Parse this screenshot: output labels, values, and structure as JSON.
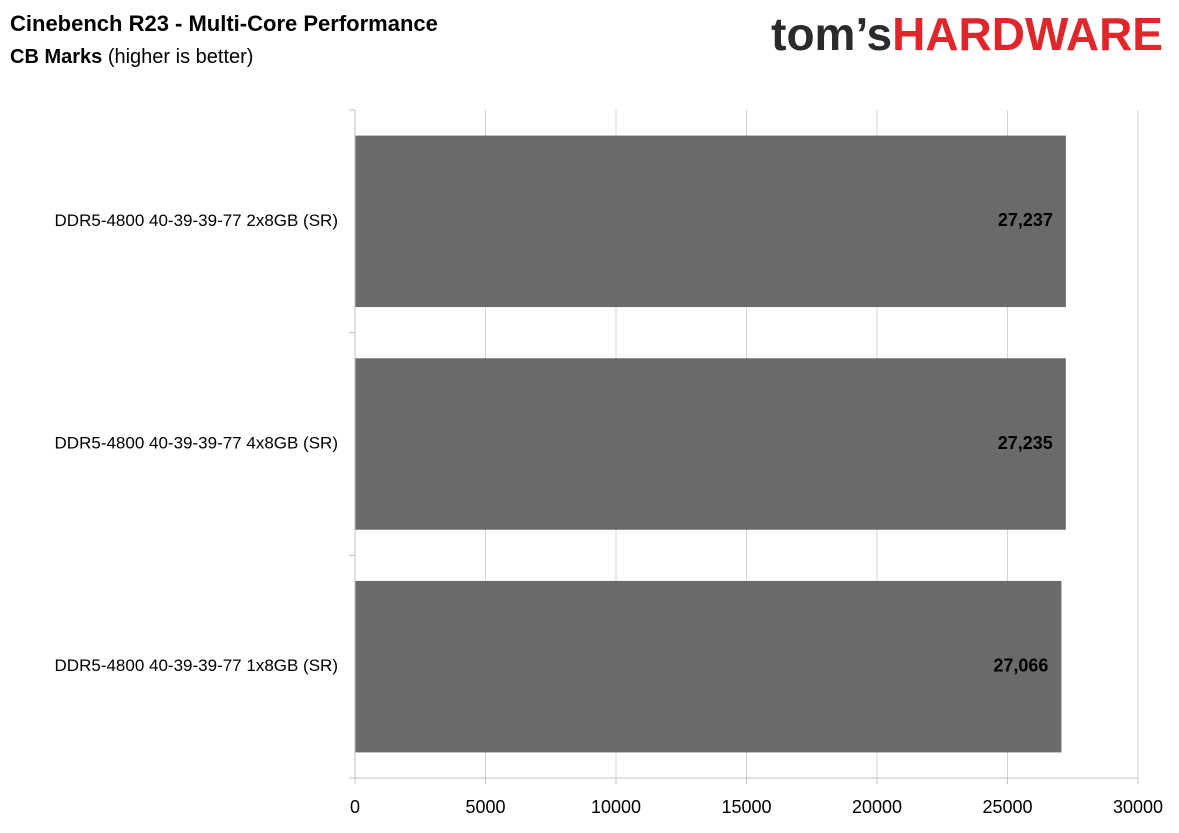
{
  "chart_data": {
    "type": "barh",
    "title": "Cinebench R23 - Multi-Core Performance",
    "subtitle": [
      "CB Marks",
      "(higher is better)"
    ],
    "logo": [
      "tom’s",
      "HARDWARE"
    ],
    "categories": [
      "DDR5-4800 40-39-39-77 2x8GB (SR)",
      "DDR5-4800 40-39-39-77 4x8GB (SR)",
      "DDR5-4800 40-39-39-77 1x8GB (SR)"
    ],
    "values": [
      27237,
      27235,
      27066
    ],
    "value_labels": [
      "27,237",
      "27,235",
      "27,066"
    ],
    "color": "#6b6969",
    "xlim": [
      0,
      30000
    ],
    "xticks": [
      0,
      5000,
      10000,
      15000,
      20000,
      25000,
      30000
    ],
    "grid": true
  }
}
